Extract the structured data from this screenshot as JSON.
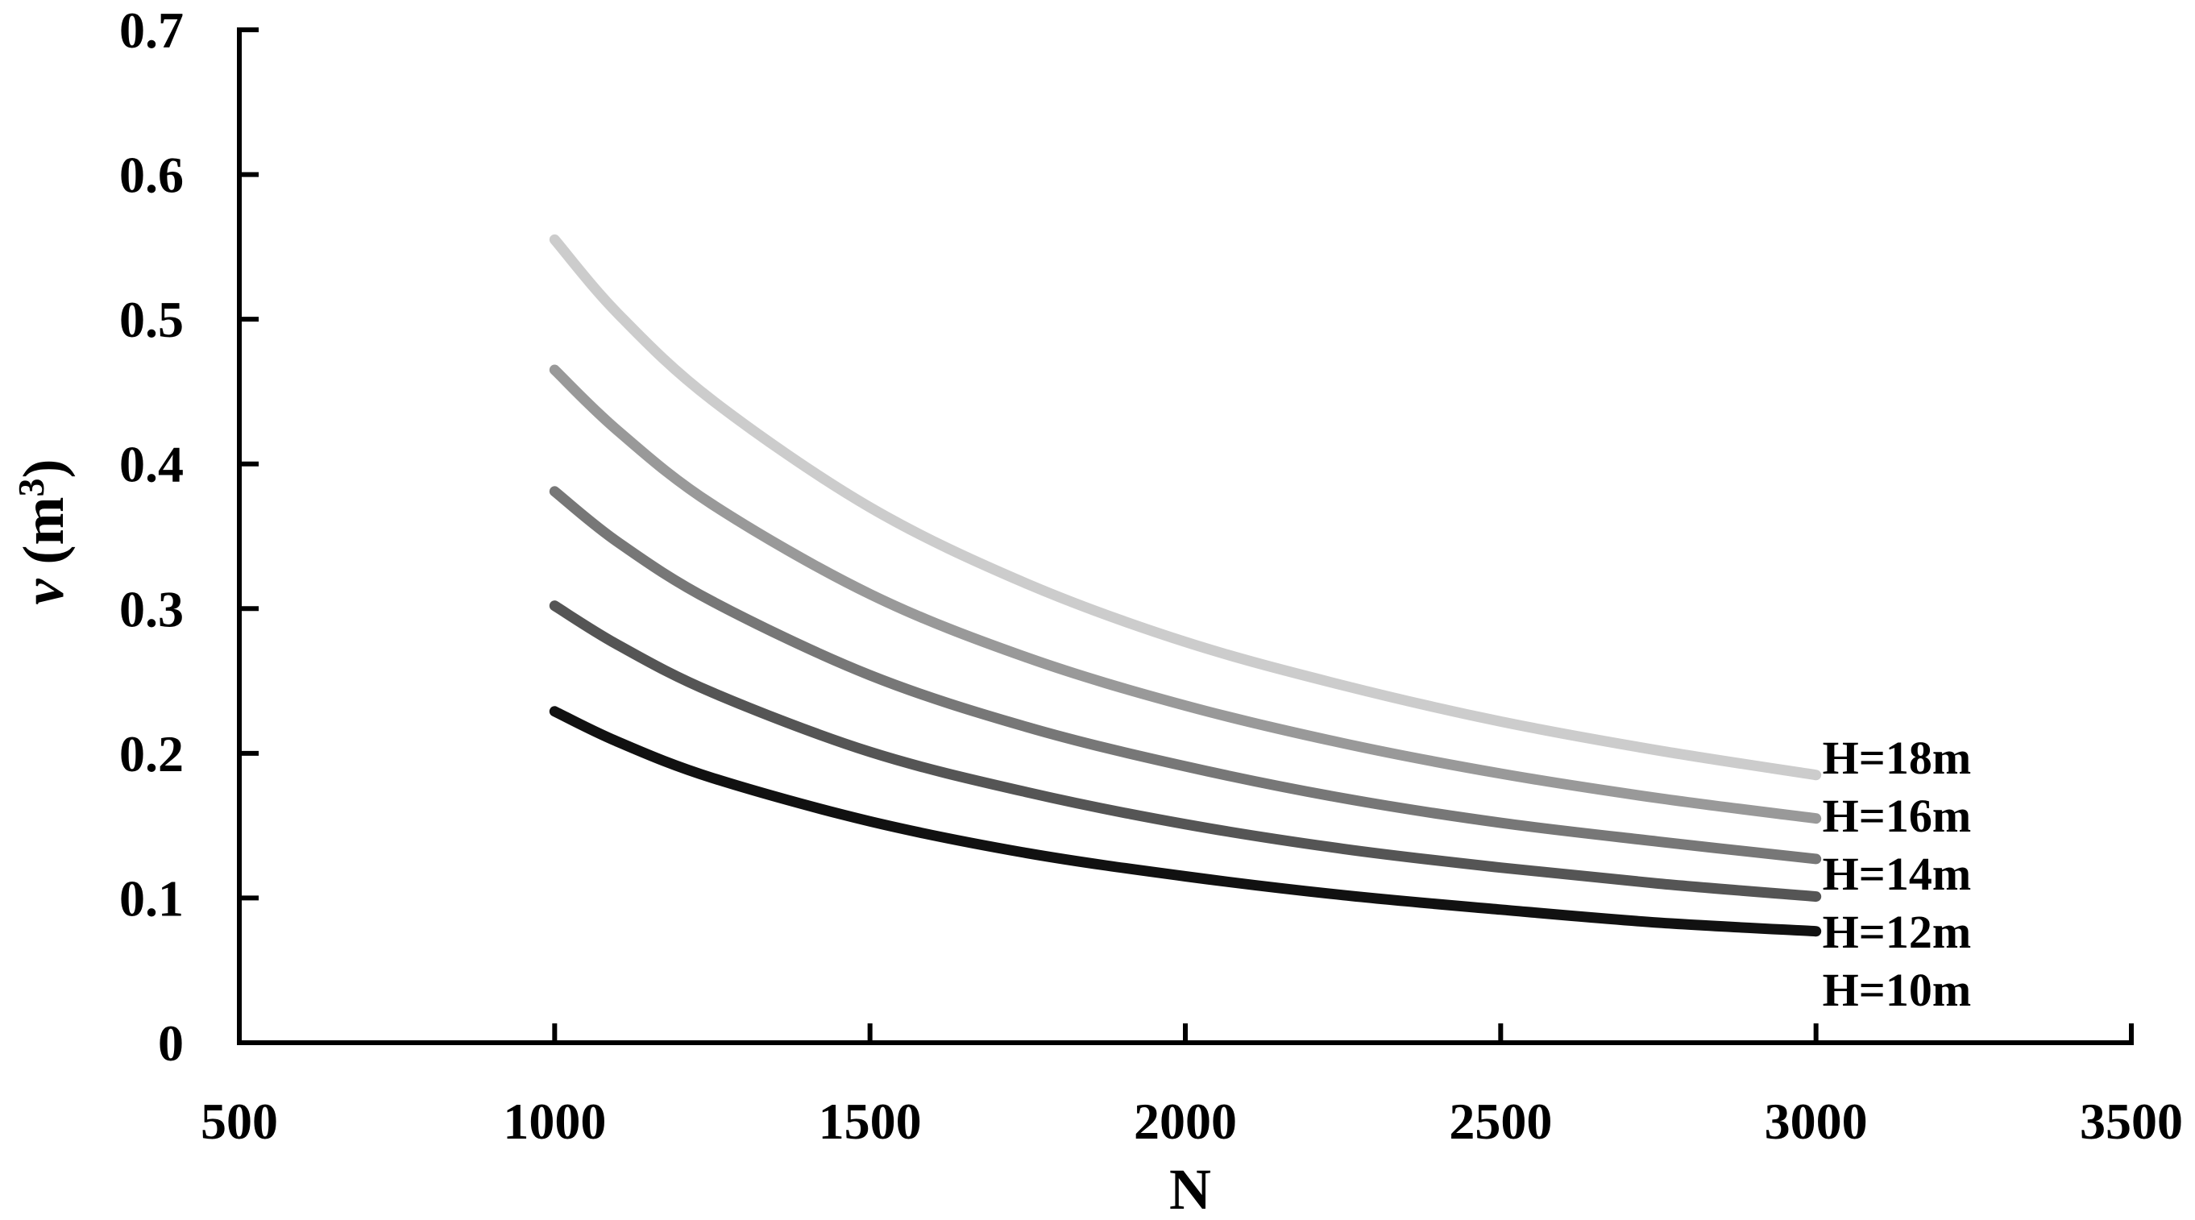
{
  "chart_data": {
    "type": "line",
    "xlabel": "N",
    "ylabel": "v (m3)",
    "ylabel_parts": {
      "var": "v",
      "open": " (m",
      "sup": "3",
      "close": ")"
    },
    "xlim": [
      500,
      3500
    ],
    "ylim": [
      0,
      0.7
    ],
    "x_ticks": [
      500,
      1000,
      1500,
      2000,
      2500,
      3000,
      3500
    ],
    "x_tick_labels": [
      "500",
      "1000",
      "1500",
      "2000",
      "2500",
      "3000",
      "3500"
    ],
    "y_ticks": [
      0,
      0.1,
      0.2,
      0.3,
      0.4,
      0.5,
      0.6,
      0.7
    ],
    "y_tick_labels": [
      "0",
      "0.1",
      "0.2",
      "0.3",
      "0.4",
      "0.5",
      "0.6",
      "0.7"
    ],
    "grid": false,
    "x": [
      1000,
      1100,
      1250,
      1500,
      1750,
      2000,
      2250,
      2500,
      2750,
      3000
    ],
    "series": [
      {
        "name": "H=18m",
        "color": "#cccccc",
        "values": [
          0.555,
          0.504,
          0.444,
          0.37,
          0.317,
          0.277,
          0.247,
          0.222,
          0.202,
          0.185
        ]
      },
      {
        "name": "H=16m",
        "color": "#999999",
        "values": [
          0.465,
          0.423,
          0.372,
          0.31,
          0.266,
          0.233,
          0.207,
          0.186,
          0.169,
          0.155
        ]
      },
      {
        "name": "H=14m",
        "color": "#777777",
        "values": [
          0.381,
          0.346,
          0.305,
          0.254,
          0.218,
          0.191,
          0.169,
          0.152,
          0.139,
          0.127
        ]
      },
      {
        "name": "H=12m",
        "color": "#555555",
        "values": [
          0.302,
          0.275,
          0.242,
          0.201,
          0.173,
          0.151,
          0.134,
          0.121,
          0.11,
          0.101
        ]
      },
      {
        "name": "H=10m",
        "color": "#111111",
        "values": [
          0.229,
          0.208,
          0.183,
          0.153,
          0.131,
          0.115,
          0.102,
          0.092,
          0.083,
          0.077
        ]
      }
    ]
  }
}
